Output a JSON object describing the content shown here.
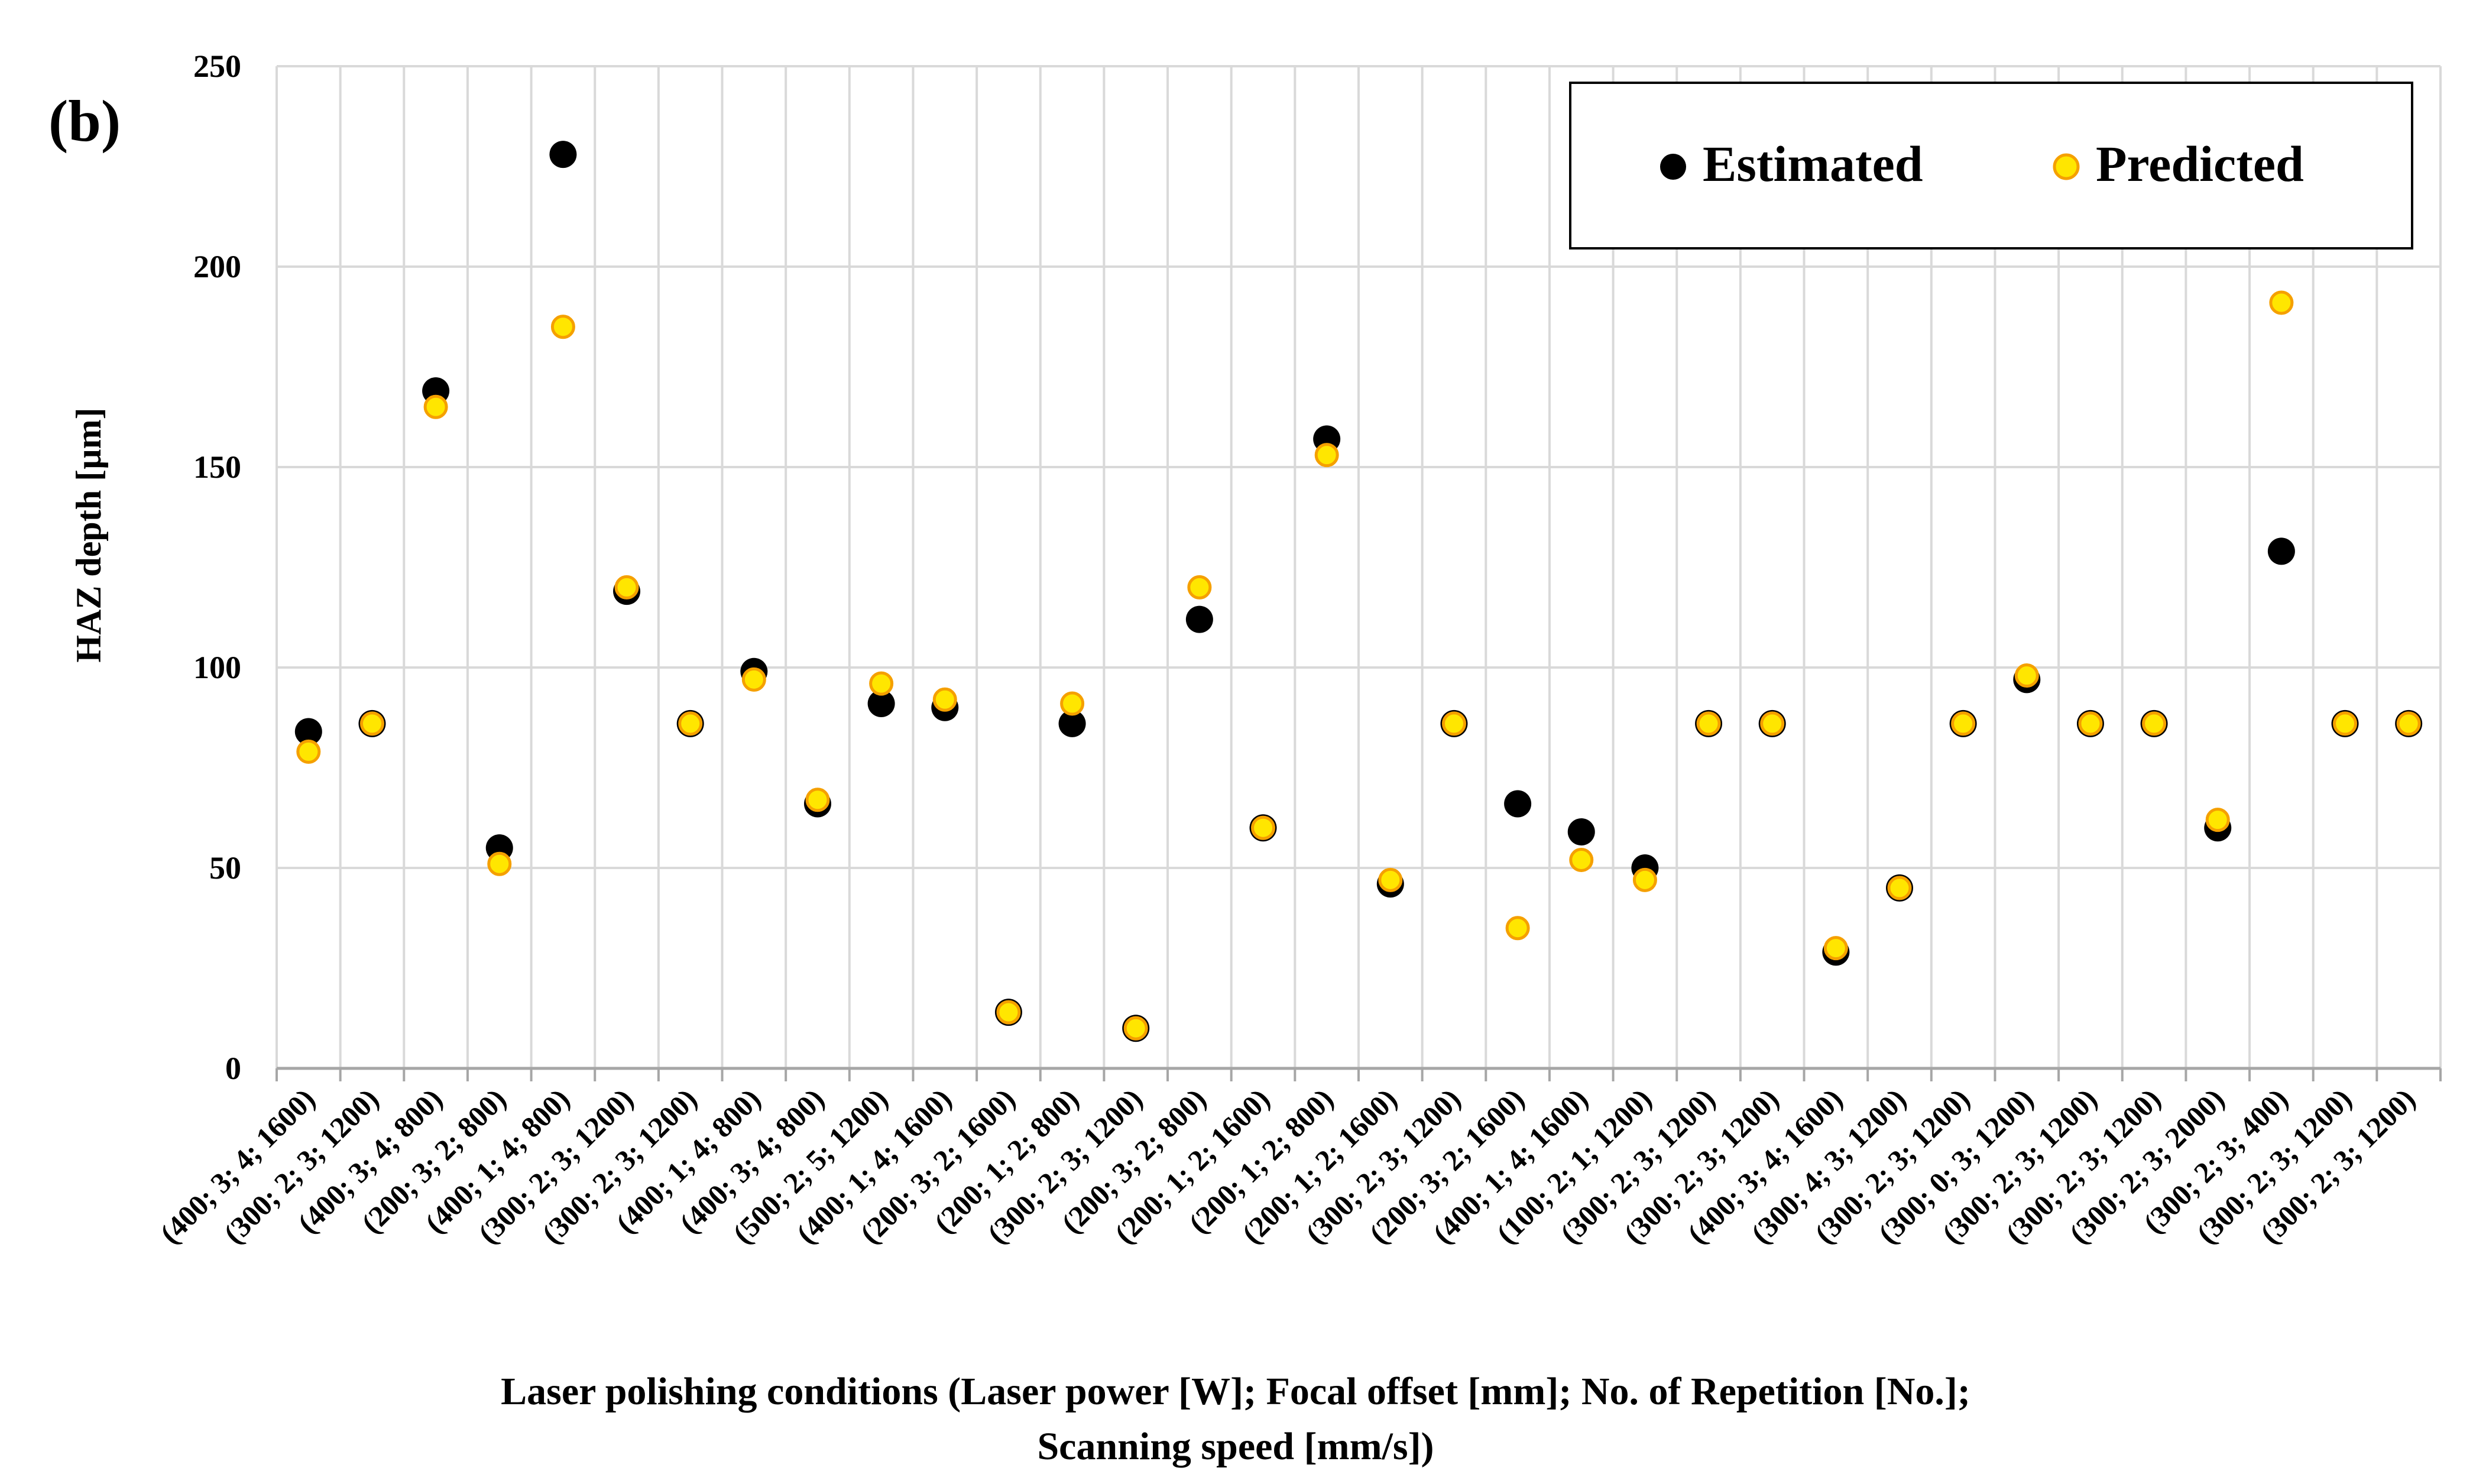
{
  "panel_label": "(b)",
  "chart_data": {
    "type": "scatter",
    "title": "",
    "ylabel": "HAZ depth [µm]",
    "xlabel_line1": "Laser polishing conditions (Laser power [W]; Focal offset [mm]; No. of Repetition [No.];",
    "xlabel_line2": "Scanning speed [mm/s])",
    "ylim": [
      0,
      250
    ],
    "yticks": [
      0,
      50,
      100,
      150,
      200,
      250
    ],
    "grid": true,
    "legend_position": "top-right",
    "categories": [
      "(400; 3; 4; 1600)",
      "(300; 2; 3; 1200)",
      "(400; 3; 4; 800)",
      "(200; 3; 2; 800)",
      "(400; 1; 4; 800)",
      "(300; 2; 3; 1200)",
      "(300; 2; 3; 1200)",
      "(400; 1; 4; 800)",
      "(400; 3; 4; 800)",
      "(500; 2; 5; 1200)",
      "(400; 1; 4; 1600)",
      "(200; 3; 2; 1600)",
      "(200; 1; 2; 800)",
      "(300; 2; 3; 1200)",
      "(200; 3; 2; 800)",
      "(200; 1; 2; 1600)",
      "(200; 1; 2; 800)",
      "(200; 1; 2; 1600)",
      "(300; 2; 3; 1200)",
      "(200; 3; 2; 1600)",
      "(400; 1; 4; 1600)",
      "(100; 2; 1; 1200)",
      "(300; 2; 3; 1200)",
      "(300; 2; 3; 1200)",
      "(400; 3; 4; 1600)",
      "(300; 4; 3; 1200)",
      "(300; 2; 3; 1200)",
      "(300; 0; 3; 1200)",
      "(300; 2; 3; 1200)",
      "(300; 2; 3; 1200)",
      "(300; 2; 3; 2000)",
      "(300; 2; 3; 400)",
      "(300; 2; 3; 1200)",
      "(300; 2; 3; 1200)"
    ],
    "series": [
      {
        "name": "Estimated",
        "color": "#000000",
        "marker": "circle",
        "values": [
          84,
          86,
          169,
          55,
          228,
          119,
          86,
          99,
          66,
          91,
          90,
          14,
          86,
          10,
          112,
          60,
          157,
          46,
          86,
          66,
          59,
          50,
          86,
          86,
          29,
          45,
          86,
          97,
          86,
          86,
          60,
          129,
          86,
          86
        ]
      },
      {
        "name": "Predicted",
        "color": "#FFE600",
        "edge_color": "#F5A000",
        "marker": "circle",
        "values": [
          79,
          86,
          165,
          51,
          185,
          120,
          86,
          97,
          67,
          96,
          92,
          14,
          91,
          10,
          120,
          60,
          153,
          47,
          86,
          35,
          52,
          47,
          86,
          86,
          30,
          45,
          86,
          98,
          86,
          86,
          62,
          191,
          86,
          86
        ]
      }
    ]
  }
}
